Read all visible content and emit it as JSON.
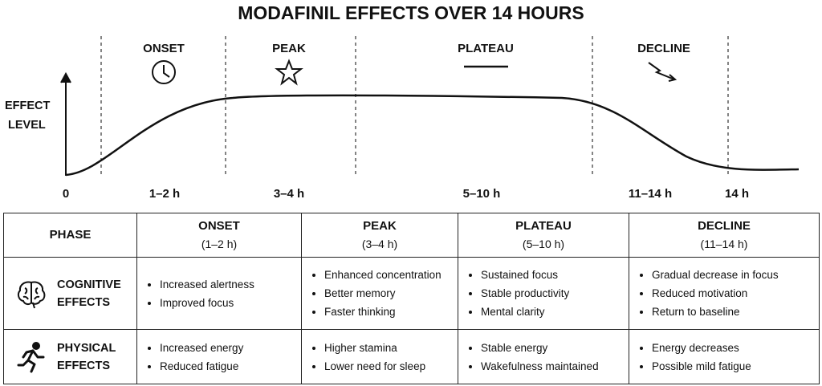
{
  "title": "MODAFINIL EFFECTS OVER 14 HOURS",
  "timeline": {
    "y_axis_label": [
      "EFFECT",
      "LEVEL"
    ],
    "phases": [
      "ONSET",
      "PEAK",
      "PLATEAU",
      "DECLINE"
    ],
    "time_labels": [
      "0",
      "1–2 h",
      "3–4 h",
      "5–10 h",
      "11–14 h",
      "14 h"
    ]
  },
  "table": {
    "corner": "PHASE",
    "columns": [
      {
        "name": "ONSET",
        "range": "(1–2 h)"
      },
      {
        "name": "PEAK",
        "range": "(3–4 h)"
      },
      {
        "name": "PLATEAU",
        "range": "(5–10 h)"
      },
      {
        "name": "DECLINE",
        "range": "(11–14 h)"
      }
    ],
    "rows": [
      {
        "label": [
          "COGNITIVE",
          "EFFECTS"
        ],
        "cells": [
          [
            "Increased alertness",
            "Improved focus"
          ],
          [
            "Enhanced concentration",
            "Better memory",
            "Faster thinking"
          ],
          [
            "Sustained focus",
            "Stable productivity",
            "Mental clarity"
          ],
          [
            "Gradual decrease in focus",
            "Reduced motivation",
            "Return to baseline"
          ]
        ]
      },
      {
        "label": [
          "PHYSICAL",
          "EFFECTS"
        ],
        "cells": [
          [
            "Increased energy",
            "Reduced fatigue"
          ],
          [
            "Higher stamina",
            "Lower need for sleep"
          ],
          [
            "Stable energy",
            "Wakefulness maintained"
          ],
          [
            "Energy decreases",
            "Possible mild fatigue"
          ]
        ]
      }
    ]
  }
}
